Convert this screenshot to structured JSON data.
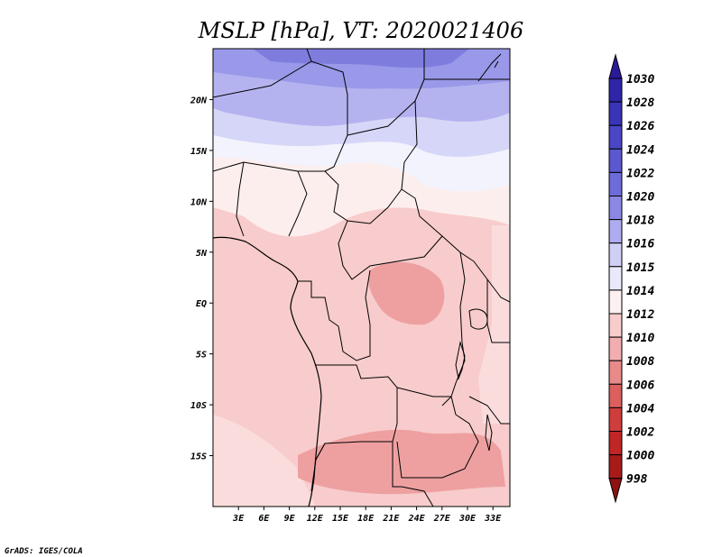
{
  "title": "MSLP [hPa], VT: 2020021406",
  "credit": "GrADS: IGES/COLA",
  "map": {
    "lon_range": [
      0,
      35
    ],
    "lat_range": [
      -20,
      25
    ],
    "x_ticks": [
      "3E",
      "6E",
      "9E",
      "12E",
      "15E",
      "18E",
      "21E",
      "24E",
      "27E",
      "30E",
      "33E"
    ],
    "y_ticks": [
      "20N",
      "15N",
      "10N",
      "5N",
      "EQ",
      "5S",
      "10S",
      "15S"
    ]
  },
  "colorbar": {
    "levels": [
      "1030",
      "1028",
      "1026",
      "1024",
      "1022",
      "1020",
      "1018",
      "1016",
      "1015",
      "1014",
      "1012",
      "1010",
      "1008",
      "1006",
      "1004",
      "1002",
      "1000",
      "998"
    ],
    "colors": [
      "#2a1a9a",
      "#2f25a8",
      "#3a34b8",
      "#4a46c6",
      "#5b58d0",
      "#6e6cda",
      "#8a88e4",
      "#aeacee",
      "#cfcff6",
      "#e9e9fb",
      "#fdf0f0",
      "#f8cccc",
      "#f2aeae",
      "#e88a8a",
      "#dc5f5f",
      "#d03d3d",
      "#c02626",
      "#a81a1a",
      "#8c1212"
    ]
  }
}
